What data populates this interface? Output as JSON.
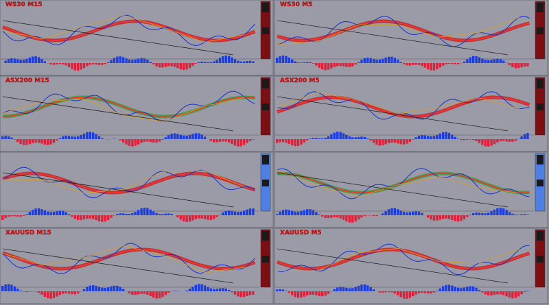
{
  "panels": [
    {
      "title": "WS30 M15"
    },
    {
      "title": "WS30 M5"
    },
    {
      "title": "ASX200 M15"
    },
    {
      "title": "ASX200 M5"
    },
    {
      "title": null
    },
    {
      "title": null
    },
    {
      "title": "XAUUSD M15"
    },
    {
      "title": "XAUUSD M5"
    }
  ]
}
